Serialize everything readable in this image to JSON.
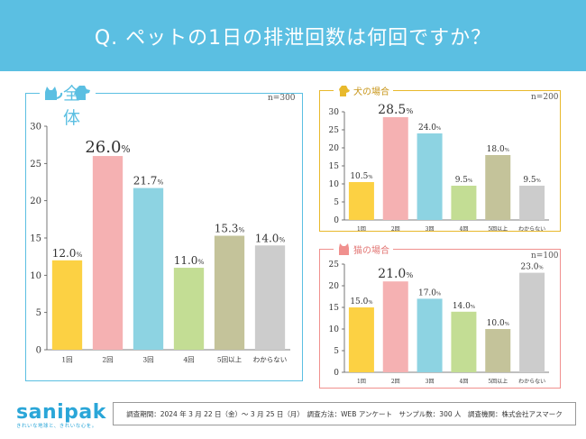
{
  "header": {
    "title": "Q. ペットの1日の排泄回数は何回ですか？"
  },
  "colors": {
    "header_bg": "#5bbfe2",
    "panel_all": "#5bbfe2",
    "panel_dog": "#e8b92c",
    "panel_cat": "#f0908e",
    "bars": [
      "#fcd143",
      "#f5b1b2",
      "#8dd3e2",
      "#c3dd94",
      "#c4c39a",
      "#cccccc"
    ]
  },
  "panels": {
    "all": {
      "label": "全体",
      "n": "n=300",
      "icon": "dog-cat-icon"
    },
    "dog": {
      "label": "犬の場合",
      "n": "n=200",
      "icon": "dog-icon"
    },
    "cat": {
      "label": "猫の場合",
      "n": "n=100",
      "icon": "cat-icon"
    }
  },
  "chart_data": [
    {
      "type": "bar",
      "title": "全体",
      "categories": [
        "1回",
        "2回",
        "3回",
        "4回",
        "5回以上",
        "わからない"
      ],
      "values": [
        12.0,
        26.0,
        21.7,
        11.0,
        15.3,
        14.0
      ],
      "value_labels": [
        "12.0",
        "26.0",
        "21.7",
        "11.0",
        "15.3",
        "14.0"
      ],
      "unit": "%",
      "ylim": [
        0,
        30
      ],
      "yticks": [
        0,
        5,
        10,
        15,
        20,
        25,
        30
      ],
      "emphasis_index": 1,
      "grid": false
    },
    {
      "type": "bar",
      "title": "犬の場合",
      "categories": [
        "1回",
        "2回",
        "3回",
        "4回",
        "5回以上",
        "わからない"
      ],
      "values": [
        10.5,
        28.5,
        24.0,
        9.5,
        18.0,
        9.5
      ],
      "value_labels": [
        "10.5",
        "28.5",
        "24.0",
        "9.5",
        "18.0",
        "9.5"
      ],
      "unit": "%",
      "ylim": [
        0,
        30
      ],
      "yticks": [
        0,
        5,
        10,
        15,
        20,
        25,
        30
      ],
      "emphasis_index": 1,
      "grid": false
    },
    {
      "type": "bar",
      "title": "猫の場合",
      "categories": [
        "1回",
        "2回",
        "3回",
        "4回",
        "5回以上",
        "わからない"
      ],
      "values": [
        15.0,
        21.0,
        17.0,
        14.0,
        10.0,
        23.0
      ],
      "value_labels": [
        "15.0",
        "21.0",
        "17.0",
        "14.0",
        "10.0",
        "23.0"
      ],
      "unit": "%",
      "ylim": [
        0,
        25
      ],
      "yticks": [
        0,
        5,
        10,
        15,
        20,
        25
      ],
      "emphasis_index": 1,
      "grid": false
    }
  ],
  "logo": {
    "name": "sanipak",
    "tagline": "きれいな地球と、きれいな心を。"
  },
  "footer": {
    "text": "調査期間：2024 年 3 月 22 日（金）～ 3 月 25 日（月）　調査方法：WEB アンケート　サンプル数：300 人　調査機関：株式会社アスマーク"
  }
}
